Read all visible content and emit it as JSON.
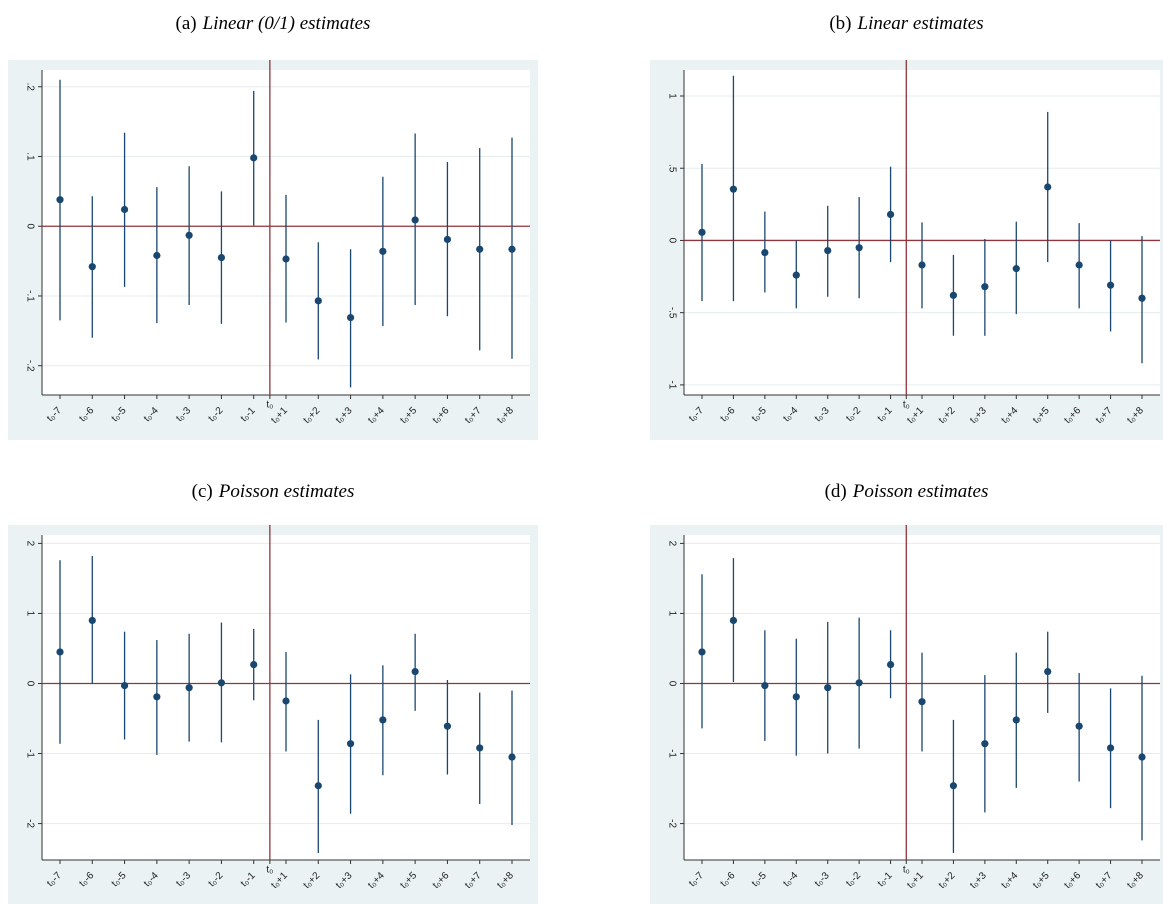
{
  "chart_data": [
    {
      "type": "errorbar",
      "label": "(a)",
      "title": "Linear (0/1) estimates",
      "categories": [
        "t₀-7",
        "t₀-6",
        "t₀-5",
        "t₀-4",
        "t₀-3",
        "t₀-2",
        "t₀-1",
        "t₀+1",
        "t₀+2",
        "t₀+3",
        "t₀+4",
        "t₀+5",
        "t₀+6",
        "t₀+7",
        "t₀+8"
      ],
      "vline_label": "t₀",
      "reference_y": 0,
      "reference_color": "#90353b",
      "grid": true,
      "series": [
        {
          "color": "#1a476f",
          "values": [
            0.038,
            -0.058,
            0.024,
            -0.042,
            -0.013,
            -0.045,
            0.098,
            -0.047,
            -0.107,
            -0.131,
            -0.036,
            0.009,
            -0.019,
            -0.033,
            -0.033
          ],
          "lower": [
            -0.135,
            -0.16,
            -0.087,
            -0.139,
            -0.113,
            -0.14,
            0.001,
            -0.138,
            -0.191,
            -0.231,
            -0.143,
            -0.113,
            -0.129,
            -0.178,
            -0.19
          ],
          "upper": [
            0.21,
            0.043,
            0.134,
            0.056,
            0.086,
            0.05,
            0.194,
            0.045,
            -0.023,
            -0.033,
            0.071,
            0.133,
            0.092,
            0.112,
            0.127
          ]
        }
      ],
      "ylim": [
        -0.242,
        0.224
      ],
      "yticks": [
        {
          "value": -0.2,
          "label": "-.2"
        },
        {
          "value": -0.1,
          "label": "-.1"
        },
        0,
        {
          "value": 0.1,
          "label": ".1"
        },
        {
          "value": 0.2,
          "label": ".2"
        }
      ]
    },
    {
      "type": "errorbar",
      "label": "(b)",
      "title": "Linear estimates",
      "categories": [
        "t₀-7",
        "t₀-6",
        "t₀-5",
        "t₀-4",
        "t₀-3",
        "t₀-2",
        "t₀-1",
        "t₀+1",
        "t₀+2",
        "t₀+3",
        "t₀+4",
        "t₀+5",
        "t₀+6",
        "t₀+7",
        "t₀+8"
      ],
      "vline_label": "t₀",
      "reference_y": 0,
      "reference_color": "#90353b",
      "grid": true,
      "series": [
        {
          "color": "#1a476f",
          "values": [
            0.056,
            0.355,
            -0.084,
            -0.24,
            -0.07,
            -0.05,
            0.18,
            -0.17,
            -0.38,
            -0.32,
            -0.195,
            0.37,
            -0.17,
            -0.31,
            -0.4
          ],
          "lower": [
            -0.42,
            -0.42,
            -0.36,
            -0.47,
            -0.39,
            -0.4,
            -0.15,
            -0.47,
            -0.66,
            -0.66,
            -0.51,
            -0.15,
            -0.47,
            -0.63,
            -0.85
          ],
          "upper": [
            0.53,
            1.14,
            0.2,
            0,
            0.24,
            0.3,
            0.51,
            0.125,
            -0.1,
            0.01,
            0.13,
            0.89,
            0.12,
            0,
            0.03
          ]
        }
      ],
      "ylim": [
        -1.07,
        1.18
      ],
      "yticks": [
        -1,
        {
          "value": -0.5,
          "label": "-.5"
        },
        0,
        {
          "value": 0.5,
          "label": ".5"
        },
        1
      ]
    },
    {
      "type": "errorbar",
      "label": "(c)",
      "title": "Poisson estimates",
      "categories": [
        "t₀-7",
        "t₀-6",
        "t₀-5",
        "t₀-4",
        "t₀-3",
        "t₀-2",
        "t₀-1",
        "t₀+1",
        "t₀+2",
        "t₀+3",
        "t₀+4",
        "t₀+5",
        "t₀+6",
        "t₀+7",
        "t₀+8"
      ],
      "vline_label": "t₀",
      "reference_y": 0,
      "reference_color": "#90353b",
      "grid": true,
      "series": [
        {
          "color": "#1a476f",
          "values": [
            0.45,
            0.9,
            -0.03,
            -0.19,
            -0.06,
            0.01,
            0.27,
            -0.25,
            -1.46,
            -0.86,
            -0.52,
            0.17,
            -0.61,
            -0.92,
            -1.05
          ],
          "lower": [
            -0.86,
            0,
            -0.8,
            -1.02,
            -0.83,
            -0.84,
            -0.24,
            -0.97,
            -2.42,
            -1.86,
            -1.31,
            -0.39,
            -1.3,
            -1.72,
            -2.02
          ],
          "upper": [
            1.76,
            1.82,
            0.74,
            0.62,
            0.71,
            0.87,
            0.78,
            0.45,
            -0.52,
            0.13,
            0.26,
            0.71,
            0.05,
            -0.13,
            -0.1
          ]
        }
      ],
      "ylim": [
        -2.52,
        2.12
      ],
      "yticks": [
        -2,
        -1,
        0,
        1,
        2
      ]
    },
    {
      "type": "errorbar",
      "label": "(d)",
      "title": "Poisson estimates",
      "categories": [
        "t₀-7",
        "t₀-6",
        "t₀-5",
        "t₀-4",
        "t₀-3",
        "t₀-2",
        "t₀-1",
        "t₀+1",
        "t₀+2",
        "t₀+3",
        "t₀+4",
        "t₀+5",
        "t₀+6",
        "t₀+7",
        "t₀+8"
      ],
      "vline_label": "t₀",
      "reference_y": 0,
      "reference_color": "#90353b",
      "grid": true,
      "series": [
        {
          "color": "#1a476f",
          "values": [
            0.45,
            0.9,
            -0.03,
            -0.19,
            -0.06,
            0.01,
            0.27,
            -0.26,
            -1.46,
            -0.86,
            -0.52,
            0.17,
            -0.61,
            -0.92,
            -1.05
          ],
          "lower": [
            -0.64,
            0.02,
            -0.82,
            -1.03,
            -1,
            -0.93,
            -0.21,
            -0.97,
            -2.42,
            -1.84,
            -1.49,
            -0.42,
            -1.4,
            -1.78,
            -2.24
          ],
          "upper": [
            1.56,
            1.79,
            0.76,
            0.64,
            0.88,
            0.94,
            0.76,
            0.44,
            -0.52,
            0.12,
            0.44,
            0.74,
            0.15,
            -0.07,
            0.11
          ]
        }
      ],
      "ylim": [
        -2.52,
        2.12
      ],
      "yticks": [
        -2,
        -1,
        0,
        1,
        2
      ]
    }
  ]
}
